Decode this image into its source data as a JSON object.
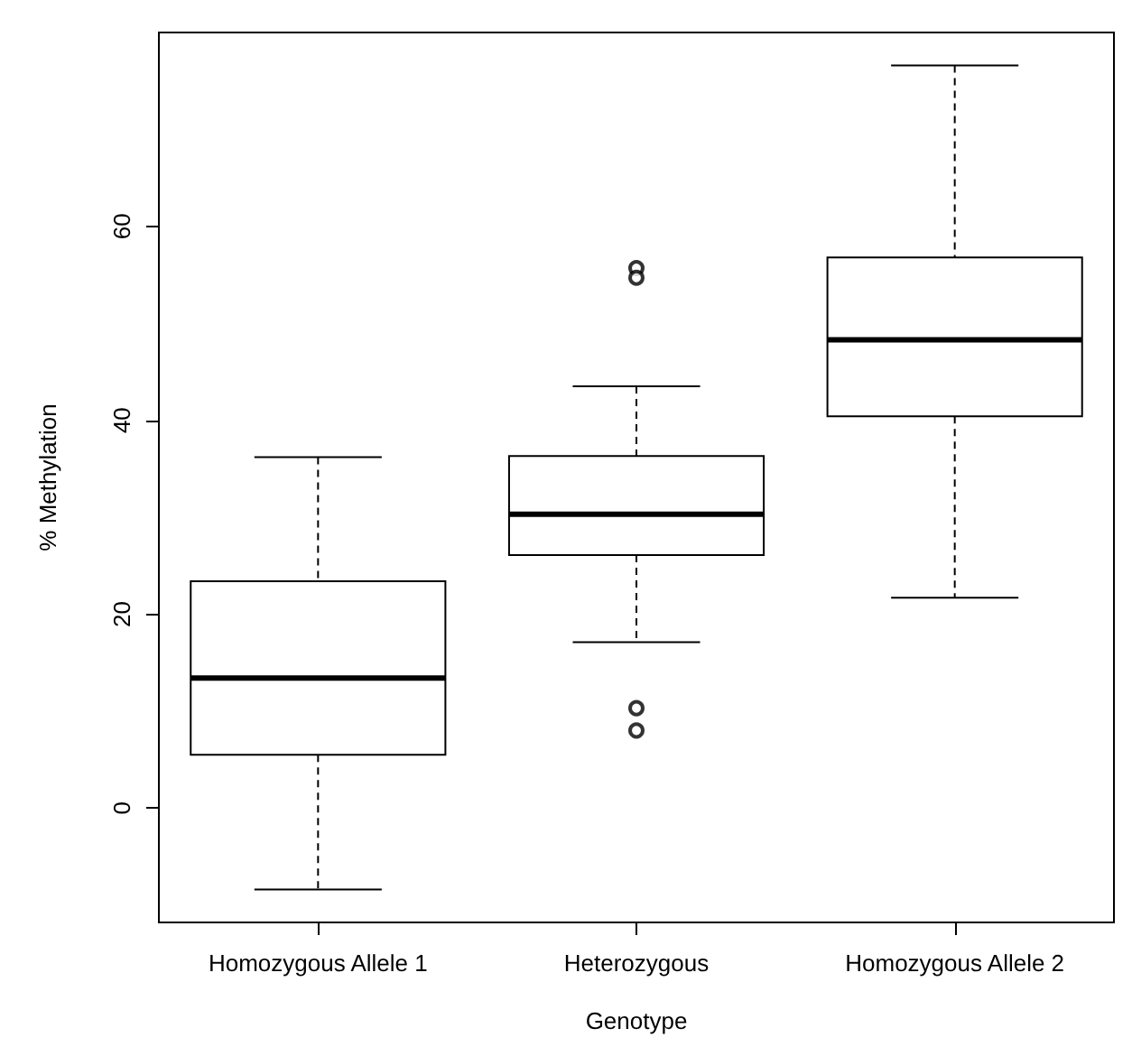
{
  "chart_data": {
    "type": "box",
    "xlabel": "Genotype",
    "ylabel": "% Methylation",
    "categories": [
      "Homozygous Allele 1",
      "Heterozygous",
      "Homozygous Allele 2"
    ],
    "boxes": [
      {
        "low": -8.4,
        "q1": 5.5,
        "median": 13.4,
        "q3": 23.4,
        "high": 36.2
      },
      {
        "low": 17.1,
        "q1": 26.1,
        "median": 30.3,
        "q3": 36.3,
        "high": 43.5,
        "outliers": [
          55.7,
          54.7,
          10.3,
          8.0
        ]
      },
      {
        "low": 21.7,
        "q1": 40.4,
        "median": 48.3,
        "q3": 56.8,
        "high": 76.6
      }
    ],
    "color": "#000000",
    "ylim": [
      -11.8,
      80
    ],
    "yticks": [
      0,
      20,
      40,
      60
    ],
    "grid": false
  }
}
